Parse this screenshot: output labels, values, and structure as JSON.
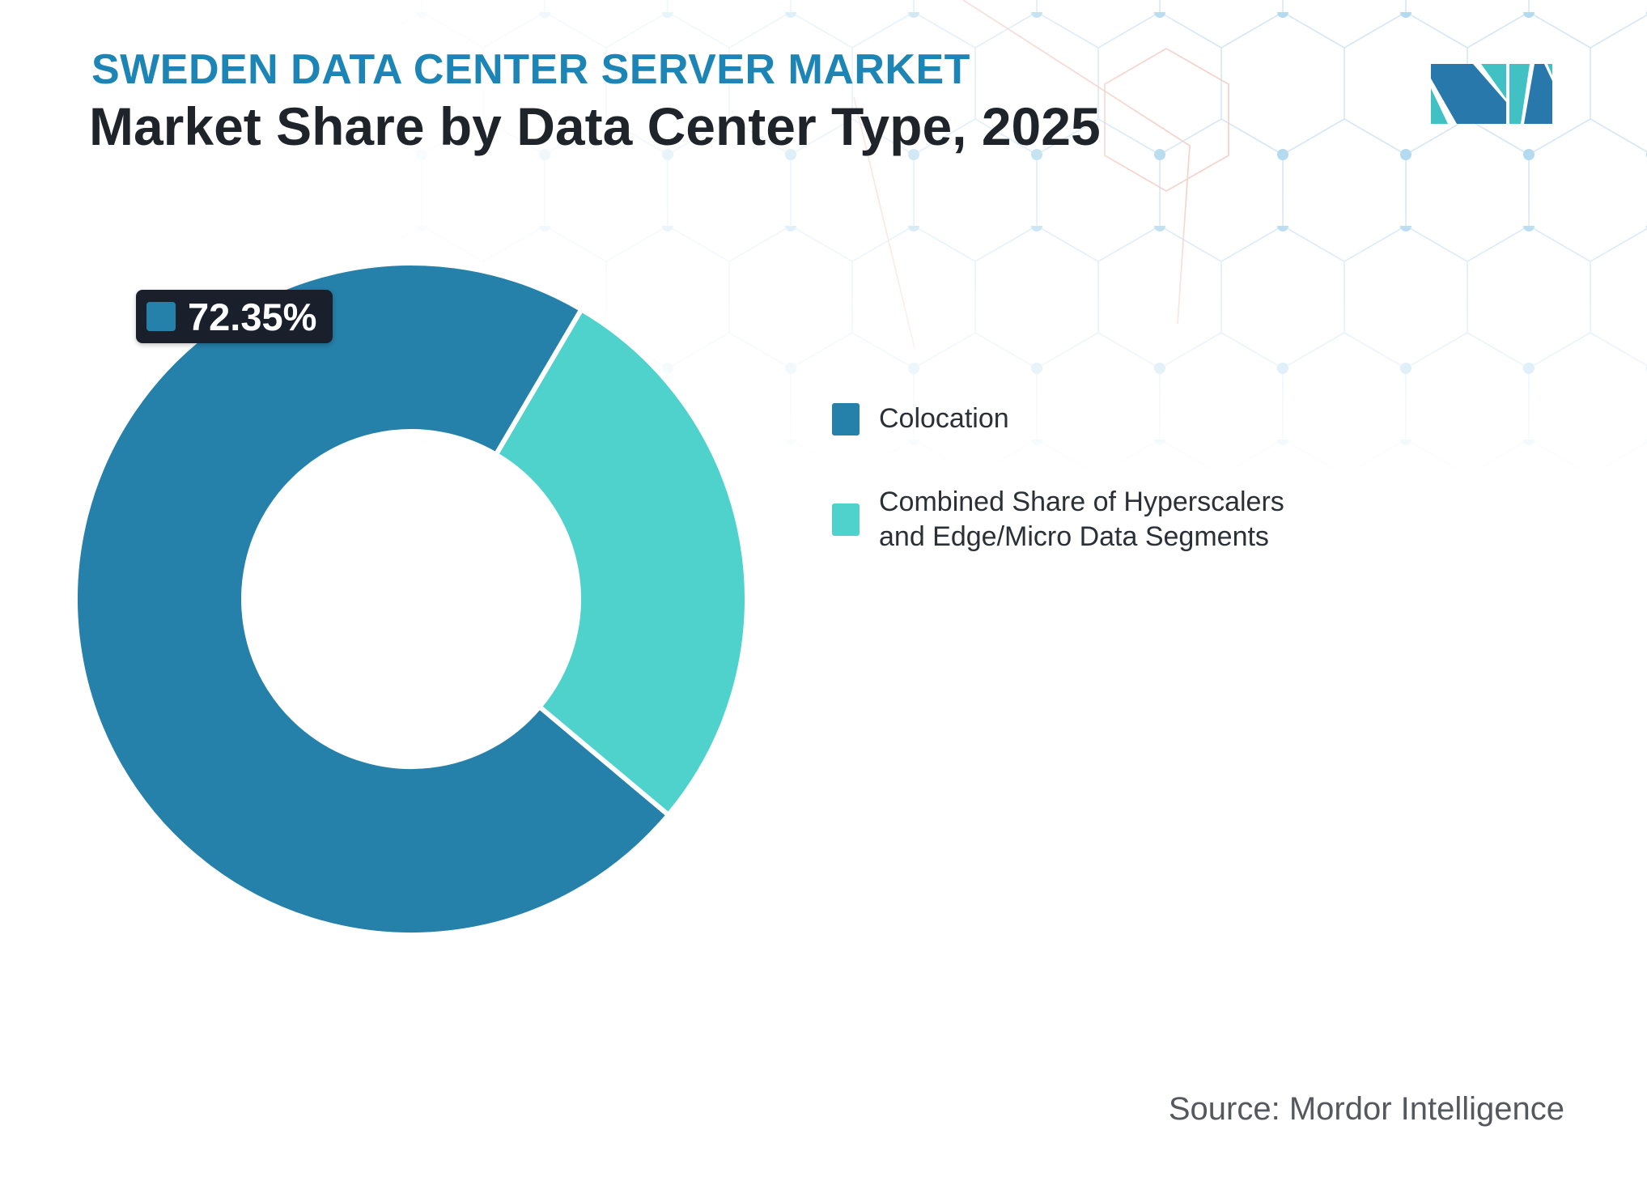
{
  "header": {
    "eyebrow": "SWEDEN DATA CENTER SERVER MARKET",
    "title": "Market Share by Data Center Type, 2025"
  },
  "logo": {
    "name": "Mordor Intelligence logo mark",
    "blue": "#2878ab",
    "teal": "#41c1c3"
  },
  "chart_data": {
    "type": "pie",
    "donut": true,
    "title": "Market Share by Data Center Type, 2025",
    "categories": [
      "Colocation",
      "Combined Share of Hyperscalers and Edge/Micro Data Segments"
    ],
    "values": [
      72.35,
      27.65
    ],
    "colors": [
      "#2581a9",
      "#4fd1cc"
    ],
    "rotation_deg": 130,
    "outer_radius": 415,
    "inner_radius": 207,
    "legend_position": "right",
    "annotation": {
      "label": "72.35%",
      "series": "Colocation"
    }
  },
  "legend": {
    "items": [
      {
        "label": "Colocation",
        "color": "#2581a9"
      },
      {
        "label": "Combined Share of Hyperscalers and Edge/Micro Data Segments",
        "color": "#4fd1cc"
      }
    ]
  },
  "footer": {
    "source": "Source: Mordor Intelligence"
  },
  "colors": {
    "accent_blue": "#1c85b5",
    "text_dark": "#1f242a",
    "text_gray": "#55585c",
    "label_bg": "#1a202b",
    "pattern_line": "#d7e8f4",
    "pattern_line_warm": "#f2cdc5",
    "pattern_dot": "#b3daee"
  }
}
